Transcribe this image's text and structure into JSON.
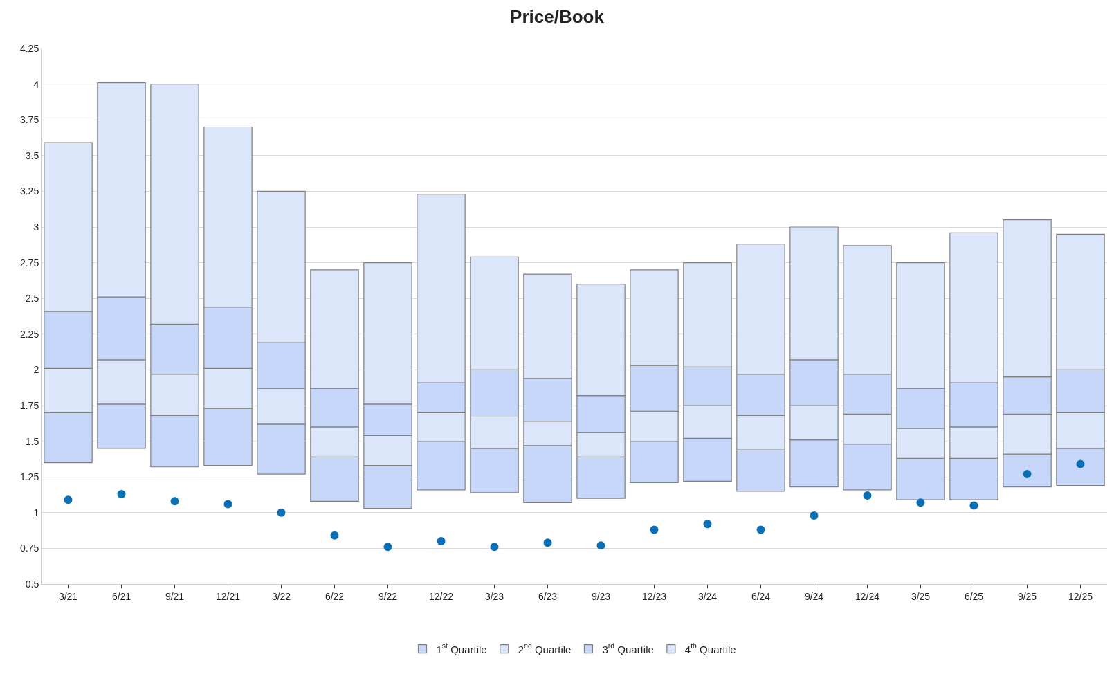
{
  "chart_data": {
    "type": "bar",
    "title": "Price/Book",
    "grid": "y",
    "legend": "bottom",
    "categories": [
      "3/21",
      "6/21",
      "9/21",
      "12/21",
      "3/22",
      "6/22",
      "9/22",
      "12/22",
      "3/23",
      "6/23",
      "9/23",
      "12/23",
      "3/24",
      "6/24",
      "9/24",
      "12/24",
      "3/25",
      "6/25",
      "9/25",
      "12/25"
    ],
    "ylim": [
      0.5,
      4.25
    ],
    "yticks": [
      0.5,
      0.75,
      1,
      1.25,
      1.5,
      1.75,
      2,
      2.25,
      2.5,
      2.75,
      3,
      3.25,
      3.5,
      3.75,
      4,
      4.25
    ],
    "series": [
      {
        "name": "1$^{st}$ Quartile",
        "color": "#c6d7fa",
        "base": [
          1.35,
          1.45,
          1.32,
          1.33,
          1.27,
          1.08,
          1.03,
          1.16,
          1.14,
          1.07,
          1.1,
          1.21,
          1.22,
          1.15,
          1.18,
          1.16,
          1.09,
          1.09,
          1.18,
          1.19
        ],
        "values": [
          0.35,
          0.31,
          0.36,
          0.4,
          0.35,
          0.31,
          0.3,
          0.34,
          0.31,
          0.4,
          0.29,
          0.29,
          0.3,
          0.29,
          0.33,
          0.32,
          0.29,
          0.29,
          0.23,
          0.26
        ]
      },
      {
        "name": "2$^{nd}$ Quartile",
        "color": "#dce6fa",
        "base": [
          1.7,
          1.76,
          1.68,
          1.73,
          1.62,
          1.39,
          1.33,
          1.5,
          1.45,
          1.47,
          1.39,
          1.5,
          1.52,
          1.44,
          1.51,
          1.48,
          1.38,
          1.38,
          1.41,
          1.45
        ],
        "values": [
          0.31,
          0.31,
          0.29,
          0.28,
          0.25,
          0.21,
          0.21,
          0.2,
          0.22,
          0.17,
          0.17,
          0.21,
          0.23,
          0.24,
          0.24,
          0.21,
          0.21,
          0.22,
          0.28,
          0.25
        ]
      },
      {
        "name": "3$^{rd}$ Quartile",
        "color": "#c6d7fa",
        "base": [
          2.01,
          2.07,
          1.97,
          2.01,
          1.87,
          1.6,
          1.54,
          1.7,
          1.67,
          1.64,
          1.56,
          1.71,
          1.75,
          1.68,
          1.75,
          1.69,
          1.59,
          1.6,
          1.69,
          1.7
        ],
        "values": [
          0.4,
          0.44,
          0.35,
          0.43,
          0.32,
          0.27,
          0.22,
          0.21,
          0.33,
          0.3,
          0.26,
          0.32,
          0.27,
          0.29,
          0.32,
          0.28,
          0.28,
          0.31,
          0.26,
          0.3
        ]
      },
      {
        "name": "4$^{th}$ Quartile",
        "color": "#dce6fa",
        "base": [
          2.41,
          2.51,
          2.32,
          2.44,
          2.19,
          1.87,
          1.76,
          1.91,
          2.0,
          1.94,
          1.82,
          2.03,
          2.02,
          1.97,
          2.07,
          1.97,
          1.87,
          1.91,
          1.95,
          2.0
        ],
        "values": [
          1.18,
          1.5,
          1.68,
          1.26,
          1.06,
          0.83,
          0.99,
          1.32,
          0.79,
          0.73,
          0.78,
          0.67,
          0.73,
          0.91,
          0.93,
          0.9,
          0.88,
          1.05,
          1.1,
          0.95
        ]
      },
      {
        "type": "scatter",
        "color": "#0a6fb5",
        "marker": "circle",
        "x": [
          "3/21",
          "6/21",
          "9/21",
          "12/21",
          "3/22",
          "6/22",
          "9/22",
          "12/22",
          "3/23",
          "6/23",
          "9/23",
          "12/23",
          "3/24",
          "6/24",
          "9/24",
          "12/24",
          "3/25",
          "6/25",
          "9/25",
          "12/25"
        ],
        "values": [
          1.09,
          1.13,
          1.08,
          1.06,
          1.0,
          0.84,
          0.76,
          0.8,
          0.76,
          0.79,
          0.77,
          0.88,
          0.92,
          0.88,
          0.98,
          1.12,
          1.07,
          1.05,
          1.27,
          1.34
        ]
      }
    ]
  }
}
